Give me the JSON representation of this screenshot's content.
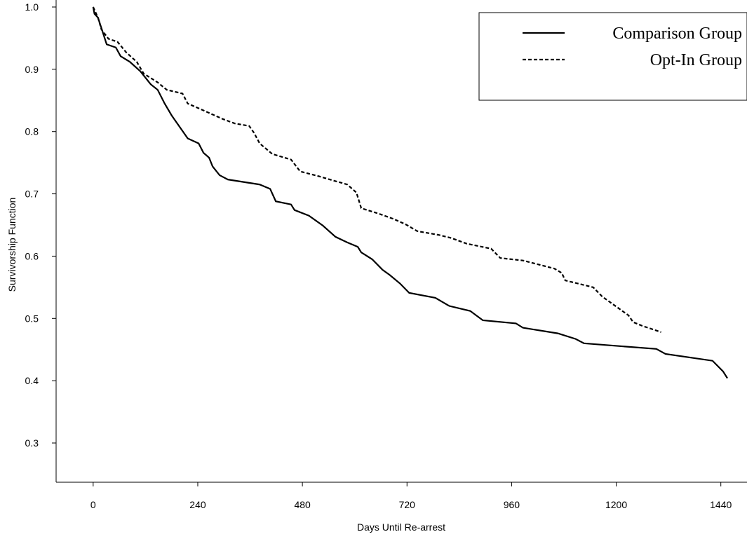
{
  "chart_data": {
    "type": "line",
    "x_label": "Days Until Re-arrest",
    "y_label": "Survivorship Function",
    "xlim": [
      -85,
      1500
    ],
    "ylim": [
      0.237,
      1.0
    ],
    "xticks": [
      0,
      240,
      480,
      720,
      960,
      1200,
      1440
    ],
    "yticks": [
      0.3,
      0.4,
      0.5,
      0.6,
      0.7,
      0.8,
      0.9,
      {
        "value": 1,
        "label": "1.0"
      }
    ],
    "legend": "upper right",
    "series": [
      {
        "name": "Comparison Group",
        "color": "#000000",
        "dash": "solid",
        "x": [
          0,
          3,
          11,
          19,
          31,
          52,
          63,
          84,
          108,
          132,
          148,
          164,
          180,
          197,
          217,
          242,
          253,
          266,
          274,
          290,
          309,
          382,
          406,
          419,
          454,
          462,
          495,
          527,
          556,
          583,
          607,
          615,
          640,
          664,
          680,
          704,
          725,
          785,
          817,
          865,
          894,
          970,
          986,
          1066,
          1107,
          1126,
          1292,
          1313,
          1421,
          1445,
          1455
        ],
        "values": [
          1.0,
          0.989,
          0.983,
          0.966,
          0.94,
          0.935,
          0.921,
          0.912,
          0.897,
          0.876,
          0.867,
          0.845,
          0.826,
          0.809,
          0.789,
          0.781,
          0.766,
          0.758,
          0.744,
          0.73,
          0.723,
          0.715,
          0.708,
          0.688,
          0.683,
          0.674,
          0.665,
          0.649,
          0.631,
          0.622,
          0.615,
          0.606,
          0.595,
          0.578,
          0.57,
          0.556,
          0.541,
          0.533,
          0.52,
          0.512,
          0.497,
          0.492,
          0.485,
          0.476,
          0.467,
          0.46,
          0.451,
          0.443,
          0.432,
          0.415,
          0.404
        ]
      },
      {
        "name": "Opt-In Group",
        "color": "#000000",
        "dash": "dashed",
        "x": [
          0,
          11,
          19,
          35,
          56,
          76,
          100,
          116,
          148,
          169,
          205,
          217,
          253,
          298,
          325,
          358,
          369,
          382,
          411,
          454,
          475,
          519,
          548,
          583,
          604,
          615,
          656,
          688,
          717,
          744,
          793,
          822,
          857,
          913,
          934,
          986,
          1058,
          1075,
          1083,
          1147,
          1168,
          1228,
          1239,
          1260,
          1303
        ],
        "values": [
          1.0,
          0.983,
          0.964,
          0.949,
          0.944,
          0.927,
          0.912,
          0.893,
          0.879,
          0.867,
          0.861,
          0.845,
          0.834,
          0.82,
          0.813,
          0.809,
          0.798,
          0.781,
          0.764,
          0.755,
          0.736,
          0.728,
          0.722,
          0.715,
          0.702,
          0.677,
          0.668,
          0.66,
          0.651,
          0.64,
          0.634,
          0.629,
          0.62,
          0.612,
          0.597,
          0.593,
          0.58,
          0.573,
          0.561,
          0.55,
          0.535,
          0.505,
          0.494,
          0.488,
          0.478
        ]
      }
    ]
  }
}
